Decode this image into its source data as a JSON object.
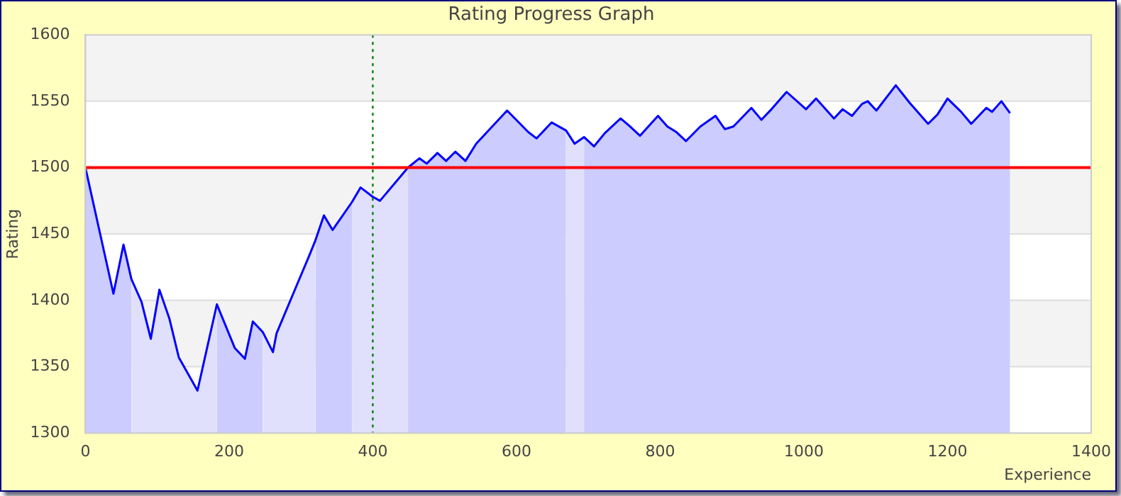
{
  "chart_data": {
    "type": "area",
    "title": "Rating Progress Graph",
    "xlabel": "Experience",
    "ylabel": "Rating",
    "series": [
      {
        "type": "line",
        "color": "#0000ff",
        "x": [
          0,
          39,
          53,
          64,
          78,
          91,
          103,
          117,
          130,
          156,
          183,
          208,
          222,
          233,
          247,
          261,
          266,
          297,
          311,
          320,
          332,
          344,
          371,
          383,
          400,
          410,
          449,
          465,
          475,
          490,
          502,
          515,
          529,
          544,
          587,
          616,
          628,
          649,
          669,
          681,
          694,
          708,
          723,
          745,
          758,
          772,
          797,
          810,
          822,
          836,
          856,
          877,
          890,
          902,
          927,
          941,
          955,
          976,
          1003,
          1017,
          1042,
          1054,
          1067,
          1081,
          1089,
          1101,
          1128,
          1147,
          1173,
          1186,
          1200,
          1219,
          1233,
          1254,
          1262,
          1275,
          1287
        ],
        "values": [
          1500,
          1405,
          1442,
          1416,
          1399,
          1371,
          1408,
          1386,
          1357,
          1332,
          1397,
          1364,
          1356,
          1384,
          1376,
          1361,
          1375,
          1415,
          1433,
          1445,
          1464,
          1453,
          1474,
          1485,
          1478,
          1475,
          1500,
          1507,
          1503,
          1511,
          1505,
          1512,
          1505,
          1518,
          1543,
          1527,
          1522,
          1534,
          1528,
          1518,
          1523,
          1516,
          1526,
          1537,
          1531,
          1524,
          1539,
          1531,
          1527,
          1520,
          1531,
          1539,
          1529,
          1531,
          1545,
          1536,
          1544,
          1557,
          1544,
          1552,
          1537,
          1544,
          1539,
          1548,
          1550,
          1543,
          1562,
          1549,
          1533,
          1540,
          1552,
          1542,
          1533,
          1545,
          1542,
          1550,
          1541
        ]
      },
      {
        "type": "area",
        "color": "#ccccff",
        "x": [
          0,
          39,
          53,
          64
        ],
        "values": [
          1500,
          1405,
          1442,
          1416
        ]
      },
      {
        "type": "area",
        "color": "#e0e0fc",
        "x": [
          64,
          78,
          91,
          103,
          117,
          130,
          156,
          183
        ],
        "values": [
          1416,
          1399,
          1371,
          1408,
          1386,
          1357,
          1332,
          1397
        ]
      },
      {
        "type": "area",
        "color": "#ccccff",
        "x": [
          183,
          208,
          222,
          233,
          247
        ],
        "values": [
          1397,
          1364,
          1356,
          1384,
          1376
        ]
      },
      {
        "type": "area",
        "color": "#e0e0fc",
        "x": [
          247,
          261,
          266,
          297,
          311,
          320
        ],
        "values": [
          1376,
          1361,
          1375,
          1415,
          1433,
          1445
        ]
      },
      {
        "type": "area",
        "color": "#ccccff",
        "x": [
          320,
          332,
          344,
          371
        ],
        "values": [
          1445,
          1464,
          1453,
          1474
        ]
      },
      {
        "type": "area",
        "color": "#e0e0fc",
        "x": [
          371,
          383,
          400,
          410,
          449
        ],
        "values": [
          1474,
          1485,
          1478,
          1475,
          1500
        ]
      },
      {
        "type": "area",
        "color": "#ccccff",
        "x": [
          449,
          465,
          475,
          490,
          502,
          515,
          529,
          544,
          587,
          616,
          628,
          649,
          669
        ],
        "values": [
          1500,
          1507,
          1503,
          1511,
          1505,
          1512,
          1505,
          1518,
          1543,
          1527,
          1522,
          1534,
          1528
        ]
      },
      {
        "type": "area",
        "color": "#e0e0fc",
        "x": [
          669,
          681,
          694
        ],
        "values": [
          1528,
          1518,
          1523
        ]
      },
      {
        "type": "area",
        "color": "#ccccff",
        "x": [
          694,
          708,
          723,
          745,
          758,
          772,
          797,
          810,
          822,
          836,
          856,
          877,
          890,
          902,
          927,
          941,
          955,
          976,
          1003,
          1017,
          1042,
          1054,
          1067,
          1081,
          1089,
          1101,
          1128,
          1147,
          1173,
          1186,
          1200,
          1219,
          1233,
          1254,
          1262,
          1275,
          1287
        ],
        "values": [
          1523,
          1516,
          1526,
          1537,
          1531,
          1524,
          1539,
          1531,
          1527,
          1520,
          1531,
          1539,
          1529,
          1531,
          1545,
          1536,
          1544,
          1557,
          1544,
          1552,
          1537,
          1544,
          1539,
          1548,
          1550,
          1543,
          1562,
          1549,
          1533,
          1540,
          1552,
          1542,
          1533,
          1545,
          1542,
          1550,
          1541
        ]
      }
    ],
    "xlim": [
      0,
      1400
    ],
    "xticks": [
      0,
      200,
      400,
      600,
      800,
      1000,
      1200,
      1400
    ],
    "ylim": [
      1300,
      1600
    ],
    "yticks": [
      1300,
      1350,
      1400,
      1450,
      1500,
      1550,
      1600
    ],
    "grid": "y",
    "legend": false,
    "marker": "none",
    "line_style": "solid",
    "ref_lines": [
      {
        "axis": "y",
        "value": 1500,
        "color": "#ff0000",
        "line_style": "solid"
      },
      {
        "axis": "x",
        "value": 400,
        "color": "#008000",
        "line_style": "dotted"
      }
    ]
  }
}
